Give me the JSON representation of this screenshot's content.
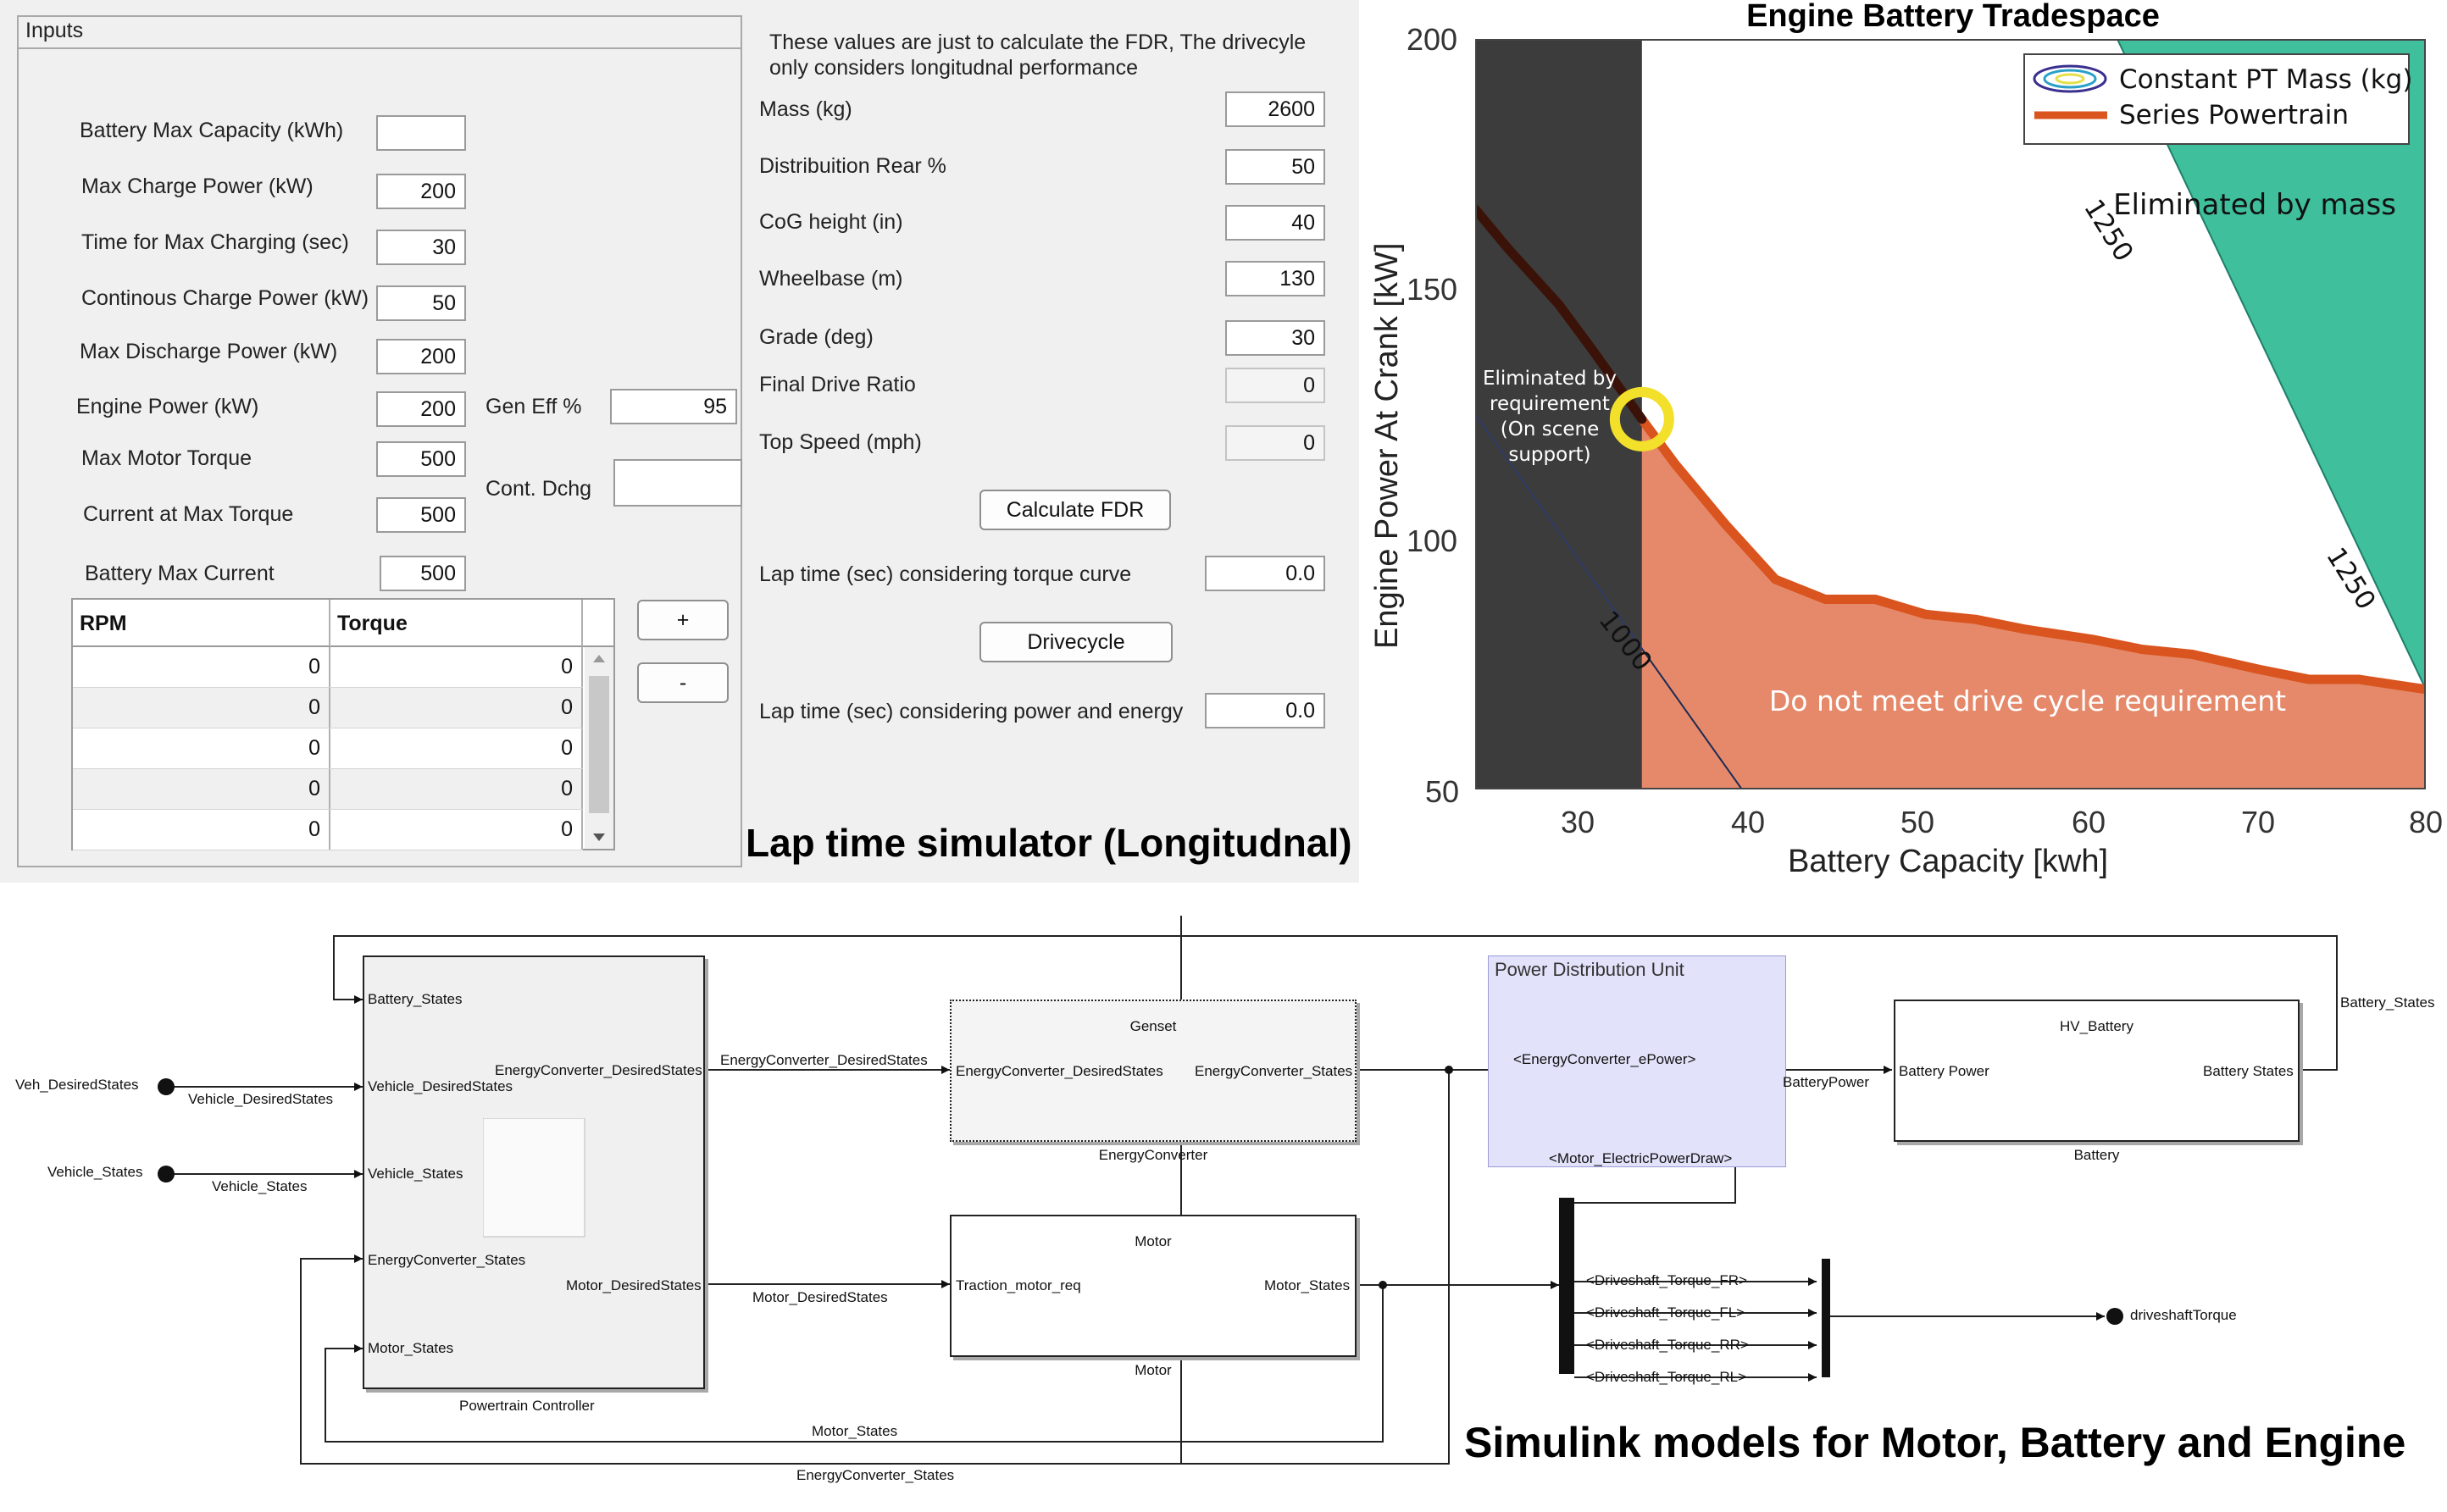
{
  "gui": {
    "inputs_title": "Inputs",
    "note_line1": "These values are just to calculate the FDR, The drivecyle",
    "note_line2": "only considers longitudnal performance",
    "left_fields": [
      {
        "label": "Battery Max Capacity (kWh)",
        "value": ""
      },
      {
        "label": "Max Charge Power (kW)",
        "value": "200"
      },
      {
        "label": "Time for Max Charging (sec)",
        "value": "30"
      },
      {
        "label": "Continous Charge Power (kW)",
        "value": "50"
      },
      {
        "label": "Max Discharge Power (kW)",
        "value": "200"
      },
      {
        "label": "Engine Power (kW)",
        "value": "200"
      },
      {
        "label": "Max Motor Torque",
        "value": "500"
      },
      {
        "label": "Current at Max Torque",
        "value": "500"
      },
      {
        "label": "Battery Max Current",
        "value": "500"
      }
    ],
    "gen_eff": {
      "label": "Gen Eff %",
      "value": "95"
    },
    "cont_dchg": {
      "label": "Cont. Dchg",
      "value": ""
    },
    "table": {
      "headers": [
        "RPM",
        "Torque"
      ],
      "rows": [
        [
          "0",
          "0"
        ],
        [
          "0",
          "0"
        ],
        [
          "0",
          "0"
        ],
        [
          "0",
          "0"
        ],
        [
          "0",
          "0"
        ]
      ]
    },
    "add_button": "+",
    "remove_button": "-",
    "right_fields": [
      {
        "label": "Mass (kg)",
        "value": "2600",
        "disabled": false
      },
      {
        "label": "Distribuition Rear %",
        "value": "50",
        "disabled": false
      },
      {
        "label": "CoG height (in)",
        "value": "40",
        "disabled": false
      },
      {
        "label": "Wheelbase  (m)",
        "value": "130",
        "disabled": false
      },
      {
        "label": "Grade (deg)",
        "value": "30",
        "disabled": false
      },
      {
        "label": "Final Drive Ratio",
        "value": "0",
        "disabled": true
      },
      {
        "label": "Top Speed (mph)",
        "value": "0",
        "disabled": true
      }
    ],
    "calc_fdr_button": "Calculate FDR",
    "lap_torque": {
      "label": "Lap time (sec) considering torque curve",
      "value": "0.0"
    },
    "drivecycle_button": "Drivecycle",
    "lap_power": {
      "label": "Lap time (sec) considering power and energy",
      "value": "0.0"
    },
    "caption": "Lap time simulator (Longitudnal)"
  },
  "chart_data": {
    "type": "line",
    "title": "Engine Battery Tradespace",
    "xlabel": "Battery Capacity [kwh]",
    "ylabel": "Engine Power At Crank [kW]",
    "xlim": [
      23,
      80
    ],
    "ylim": [
      50,
      200
    ],
    "xticks": [
      "30",
      "40",
      "50",
      "60",
      "70",
      "80"
    ],
    "yticks": [
      "200",
      "150",
      "100",
      "50"
    ],
    "legend": [
      "Constant PT Mass (kg)",
      "Series Powertrain"
    ],
    "legend_position": "top-right",
    "series": [
      {
        "name": "Series Powertrain",
        "color": "#d9541e",
        "x": [
          23,
          25,
          28,
          30,
          33,
          35,
          38,
          41,
          44,
          47,
          50,
          53,
          56,
          60,
          63,
          66,
          70,
          73,
          76,
          80
        ],
        "y": [
          166,
          158,
          147,
          138,
          124,
          115,
          103,
          92,
          88,
          88,
          85,
          84,
          82,
          80,
          78,
          77,
          74,
          72,
          72,
          70
        ]
      }
    ],
    "contours": [
      {
        "label": "1000",
        "x": [
          23,
          39
        ],
        "y": [
          125,
          50
        ]
      },
      {
        "label": "1250",
        "x": [
          61.5,
          80
        ],
        "y": [
          200,
          70
        ]
      }
    ],
    "regions": [
      {
        "label": "Eliminated by requirement (On scene support)",
        "color": "#3c3c3c"
      },
      {
        "label": "Eliminated by mass",
        "color": "#3fbf9c"
      },
      {
        "label": "Do not meet drive cycle requirement",
        "color": "#e5896a"
      }
    ],
    "eliminated_requirement_lines": [
      "Eliminated by",
      "requirement",
      "(On scene",
      "support)"
    ],
    "highlight": {
      "x": 33,
      "y": 124,
      "color": "#f2e02a"
    }
  },
  "simulink": {
    "inports": [
      "Veh_DesiredStates",
      "Vehicle_States"
    ],
    "outport": "driveshaftTorque",
    "powertrain": {
      "name": "Powertrain Controller",
      "inputs": [
        "Battery_States",
        "Vehicle_DesiredStates",
        "Vehicle_States",
        "EnergyConverter_States",
        "Motor_States"
      ],
      "outputs": [
        "EnergyConverter_DesiredStates",
        "Motor_DesiredStates"
      ]
    },
    "genset": {
      "title": "Genset",
      "input": "EnergyConverter_DesiredStates",
      "output": "EnergyConverter_States",
      "name": "EnergyConverter"
    },
    "motor": {
      "title": "Motor",
      "input": "Traction_motor_req",
      "output": "Motor_States",
      "name": "Motor"
    },
    "pdu": {
      "title": "Power Distribution Unit",
      "sig1": "<EnergyConverter_ePower>",
      "sig2": "<Motor_ElectricPowerDraw>"
    },
    "battery": {
      "title": "HV_Battery",
      "input": "Battery Power",
      "output": "Battery States",
      "name": "Battery"
    },
    "signals": {
      "veh_desired": "Vehicle_DesiredStates",
      "veh_states": "Vehicle_States",
      "ec_desired": "EnergyConverter_DesiredStates",
      "motor_desired": "Motor_DesiredStates",
      "battery_power": "BatteryPower",
      "battery_states": "Battery_States",
      "motor_states": "Motor_States",
      "ec_states": "EnergyConverter_States"
    },
    "torque_signals": [
      "<Driveshaft_Torque_FR>",
      "<Driveshaft_Torque_FL>",
      "<Driveshaft_Torque_RR>",
      "<Driveshaft_Torque_RL>"
    ],
    "caption": "Simulink models for Motor, Battery and Engine"
  }
}
